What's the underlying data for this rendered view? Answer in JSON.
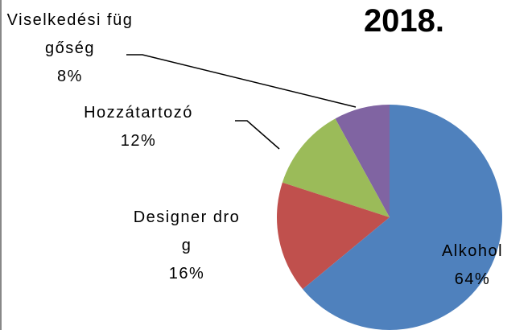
{
  "chart_data": {
    "type": "pie",
    "title": "2018.",
    "categories": [
      "Alkohol",
      "Designer drog",
      "Hozzátartozó",
      "Viselkedési függőség"
    ],
    "values": [
      64,
      16,
      12,
      8
    ],
    "value_labels": [
      "64%",
      "16%",
      "12%",
      "8%"
    ],
    "colors": [
      "#4f81bd",
      "#c0504d",
      "#9bbb59",
      "#8064a2"
    ]
  }
}
